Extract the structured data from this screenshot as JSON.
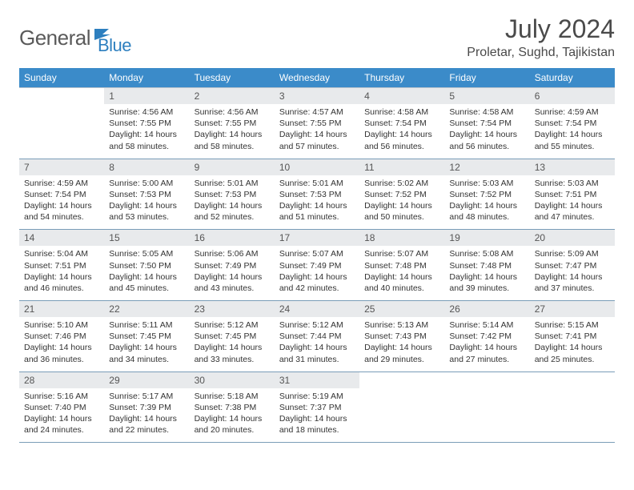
{
  "logo": {
    "text1": "General",
    "text2": "Blue"
  },
  "title": "July 2024",
  "location": "Proletar, Sughd, Tajikistan",
  "colors": {
    "header_bg": "#3b8bc9",
    "daynum_bg": "#e8eaec",
    "row_border": "#7a9db8",
    "logo_blue": "#2d7fbf"
  },
  "day_names": [
    "Sunday",
    "Monday",
    "Tuesday",
    "Wednesday",
    "Thursday",
    "Friday",
    "Saturday"
  ],
  "weeks": [
    {
      "nums": [
        "",
        "1",
        "2",
        "3",
        "4",
        "5",
        "6"
      ],
      "cells": [
        "",
        "Sunrise: 4:56 AM\nSunset: 7:55 PM\nDaylight: 14 hours and 58 minutes.",
        "Sunrise: 4:56 AM\nSunset: 7:55 PM\nDaylight: 14 hours and 58 minutes.",
        "Sunrise: 4:57 AM\nSunset: 7:55 PM\nDaylight: 14 hours and 57 minutes.",
        "Sunrise: 4:58 AM\nSunset: 7:54 PM\nDaylight: 14 hours and 56 minutes.",
        "Sunrise: 4:58 AM\nSunset: 7:54 PM\nDaylight: 14 hours and 56 minutes.",
        "Sunrise: 4:59 AM\nSunset: 7:54 PM\nDaylight: 14 hours and 55 minutes."
      ]
    },
    {
      "nums": [
        "7",
        "8",
        "9",
        "10",
        "11",
        "12",
        "13"
      ],
      "cells": [
        "Sunrise: 4:59 AM\nSunset: 7:54 PM\nDaylight: 14 hours and 54 minutes.",
        "Sunrise: 5:00 AM\nSunset: 7:53 PM\nDaylight: 14 hours and 53 minutes.",
        "Sunrise: 5:01 AM\nSunset: 7:53 PM\nDaylight: 14 hours and 52 minutes.",
        "Sunrise: 5:01 AM\nSunset: 7:53 PM\nDaylight: 14 hours and 51 minutes.",
        "Sunrise: 5:02 AM\nSunset: 7:52 PM\nDaylight: 14 hours and 50 minutes.",
        "Sunrise: 5:03 AM\nSunset: 7:52 PM\nDaylight: 14 hours and 48 minutes.",
        "Sunrise: 5:03 AM\nSunset: 7:51 PM\nDaylight: 14 hours and 47 minutes."
      ]
    },
    {
      "nums": [
        "14",
        "15",
        "16",
        "17",
        "18",
        "19",
        "20"
      ],
      "cells": [
        "Sunrise: 5:04 AM\nSunset: 7:51 PM\nDaylight: 14 hours and 46 minutes.",
        "Sunrise: 5:05 AM\nSunset: 7:50 PM\nDaylight: 14 hours and 45 minutes.",
        "Sunrise: 5:06 AM\nSunset: 7:49 PM\nDaylight: 14 hours and 43 minutes.",
        "Sunrise: 5:07 AM\nSunset: 7:49 PM\nDaylight: 14 hours and 42 minutes.",
        "Sunrise: 5:07 AM\nSunset: 7:48 PM\nDaylight: 14 hours and 40 minutes.",
        "Sunrise: 5:08 AM\nSunset: 7:48 PM\nDaylight: 14 hours and 39 minutes.",
        "Sunrise: 5:09 AM\nSunset: 7:47 PM\nDaylight: 14 hours and 37 minutes."
      ]
    },
    {
      "nums": [
        "21",
        "22",
        "23",
        "24",
        "25",
        "26",
        "27"
      ],
      "cells": [
        "Sunrise: 5:10 AM\nSunset: 7:46 PM\nDaylight: 14 hours and 36 minutes.",
        "Sunrise: 5:11 AM\nSunset: 7:45 PM\nDaylight: 14 hours and 34 minutes.",
        "Sunrise: 5:12 AM\nSunset: 7:45 PM\nDaylight: 14 hours and 33 minutes.",
        "Sunrise: 5:12 AM\nSunset: 7:44 PM\nDaylight: 14 hours and 31 minutes.",
        "Sunrise: 5:13 AM\nSunset: 7:43 PM\nDaylight: 14 hours and 29 minutes.",
        "Sunrise: 5:14 AM\nSunset: 7:42 PM\nDaylight: 14 hours and 27 minutes.",
        "Sunrise: 5:15 AM\nSunset: 7:41 PM\nDaylight: 14 hours and 25 minutes."
      ]
    },
    {
      "nums": [
        "28",
        "29",
        "30",
        "31",
        "",
        "",
        ""
      ],
      "cells": [
        "Sunrise: 5:16 AM\nSunset: 7:40 PM\nDaylight: 14 hours and 24 minutes.",
        "Sunrise: 5:17 AM\nSunset: 7:39 PM\nDaylight: 14 hours and 22 minutes.",
        "Sunrise: 5:18 AM\nSunset: 7:38 PM\nDaylight: 14 hours and 20 minutes.",
        "Sunrise: 5:19 AM\nSunset: 7:37 PM\nDaylight: 14 hours and 18 minutes.",
        "",
        "",
        ""
      ]
    }
  ]
}
